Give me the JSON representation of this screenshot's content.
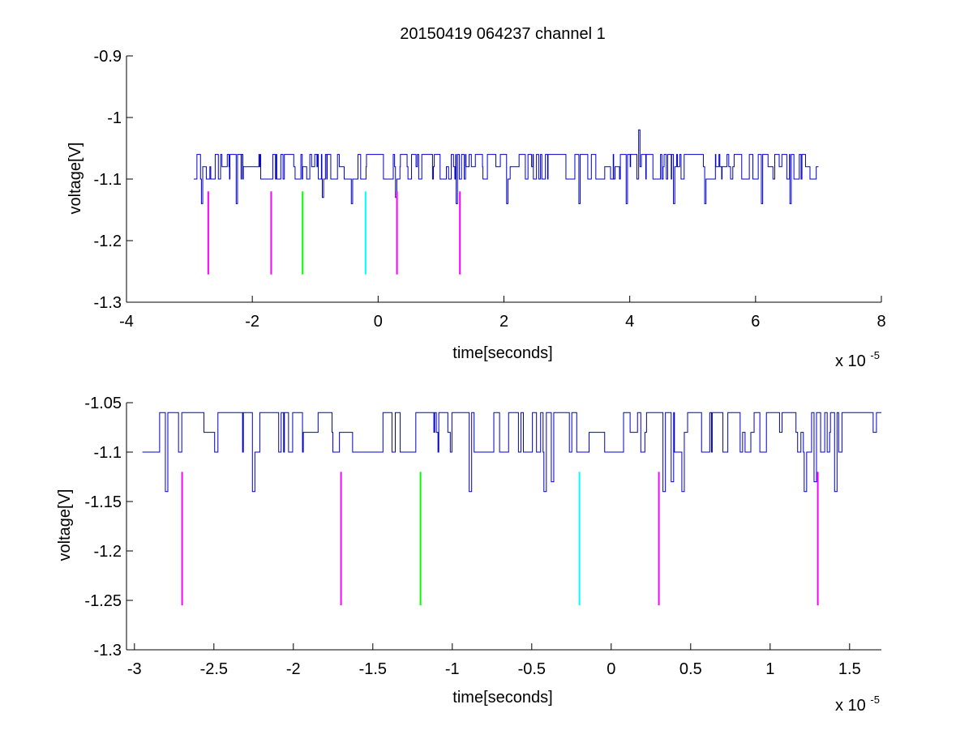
{
  "figure": {
    "title": "20150419 064237 channel 1"
  },
  "chart_data": [
    {
      "type": "line",
      "title": "20150419 064237 channel 1",
      "xlabel": "time[seconds]",
      "ylabel": "voltage[V]",
      "x_exponent_label": "x 10",
      "x_exponent": "-5",
      "xlim": [
        -4,
        8
      ],
      "ylim": [
        -1.3,
        -0.9
      ],
      "xticks": [
        -4,
        -2,
        0,
        2,
        4,
        6,
        8
      ],
      "xtick_labels": [
        "-4",
        "-2",
        "0",
        "2",
        "4",
        "6",
        "8"
      ],
      "yticks": [
        -1.3,
        -1.2,
        -1.1,
        -1.0,
        -0.9
      ],
      "ytick_labels": [
        "-1.3",
        "-1.2",
        "-1.1",
        "-1",
        "-0.9"
      ],
      "grid": false,
      "signal": {
        "color": "#0000cc",
        "x_range": [
          -2.93,
          7.0
        ],
        "levels": [
          -1.06,
          -1.08,
          -1.1
        ],
        "baseline": -1.1,
        "dips": [
          [
            -2.8,
            -1.14
          ],
          [
            -2.25,
            -1.14
          ],
          [
            -0.88,
            -1.13
          ],
          [
            -0.42,
            -1.14
          ],
          [
            0.28,
            -1.13
          ],
          [
            1.25,
            -1.14
          ],
          [
            2.05,
            -1.14
          ],
          [
            3.2,
            -1.14
          ],
          [
            3.95,
            -1.14
          ],
          [
            4.7,
            -1.14
          ],
          [
            5.2,
            -1.14
          ],
          [
            6.1,
            -1.14
          ],
          [
            6.55,
            -1.14
          ]
        ],
        "peaks": [
          [
            4.15,
            -1.02
          ]
        ]
      },
      "markers": [
        {
          "x": -2.7,
          "y_top": -1.12,
          "y_bottom": -1.255,
          "color": "#ff00ff"
        },
        {
          "x": -1.7,
          "y_top": -1.12,
          "y_bottom": -1.255,
          "color": "#ff00ff"
        },
        {
          "x": -1.2,
          "y_top": -1.12,
          "y_bottom": -1.255,
          "color": "#00ff00"
        },
        {
          "x": -0.2,
          "y_top": -1.12,
          "y_bottom": -1.255,
          "color": "#00ffff"
        },
        {
          "x": 0.3,
          "y_top": -1.12,
          "y_bottom": -1.255,
          "color": "#ff00ff"
        },
        {
          "x": 1.3,
          "y_top": -1.12,
          "y_bottom": -1.255,
          "color": "#ff00ff"
        }
      ]
    },
    {
      "type": "line",
      "title": "",
      "xlabel": "time[seconds]",
      "ylabel": "voltage[V]",
      "x_exponent_label": "x 10",
      "x_exponent": "-5",
      "xlim": [
        -3.05,
        1.7
      ],
      "ylim": [
        -1.3,
        -1.05
      ],
      "xticks": [
        -3,
        -2.5,
        -2,
        -1.5,
        -1,
        -0.5,
        0,
        0.5,
        1,
        1.5
      ],
      "xtick_labels": [
        "-3",
        "-2.5",
        "-2",
        "-1.5",
        "-1",
        "-0.5",
        "0",
        "0.5",
        "1",
        "1.5"
      ],
      "yticks": [
        -1.3,
        -1.25,
        -1.2,
        -1.15,
        -1.1,
        -1.05
      ],
      "ytick_labels": [
        "-1.3",
        "-1.25",
        "-1.2",
        "-1.15",
        "-1.1",
        "-1.05"
      ],
      "grid": false,
      "signal": {
        "color": "#0000cc",
        "x_range": [
          -2.95,
          1.7
        ],
        "levels": [
          -1.06,
          -1.08,
          -1.1
        ],
        "baseline": -1.1,
        "dips": [
          [
            -2.8,
            -1.14
          ],
          [
            -2.25,
            -1.14
          ],
          [
            -0.89,
            -1.14
          ],
          [
            -0.42,
            -1.14
          ],
          [
            -0.37,
            -1.13
          ],
          [
            0.33,
            -1.14
          ],
          [
            0.38,
            -1.13
          ],
          [
            0.45,
            -1.14
          ],
          [
            1.22,
            -1.14
          ],
          [
            1.28,
            -1.13
          ],
          [
            1.41,
            -1.14
          ]
        ],
        "peaks": []
      },
      "markers": [
        {
          "x": -2.7,
          "y_top": -1.12,
          "y_bottom": -1.255,
          "color": "#ff00ff"
        },
        {
          "x": -1.7,
          "y_top": -1.12,
          "y_bottom": -1.255,
          "color": "#ff00ff"
        },
        {
          "x": -1.2,
          "y_top": -1.12,
          "y_bottom": -1.255,
          "color": "#00ff00"
        },
        {
          "x": -0.2,
          "y_top": -1.12,
          "y_bottom": -1.255,
          "color": "#00ffff"
        },
        {
          "x": 0.3,
          "y_top": -1.12,
          "y_bottom": -1.255,
          "color": "#ff00ff"
        },
        {
          "x": 1.3,
          "y_top": -1.12,
          "y_bottom": -1.255,
          "color": "#ff00ff"
        }
      ]
    }
  ]
}
